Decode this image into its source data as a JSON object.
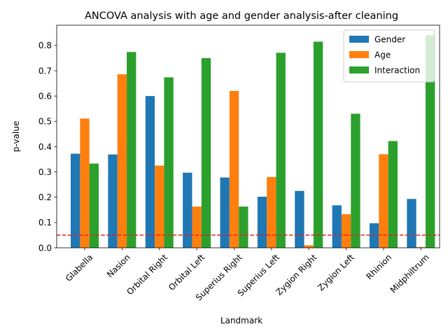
{
  "chart_data": {
    "type": "bar",
    "title": "ANCOVA analysis with age and gender analysis-after cleaning",
    "xlabel": "Landmark",
    "ylabel": "p-value",
    "ylim": [
      0,
      0.88
    ],
    "yticks": [
      "0.0",
      "0.1",
      "0.2",
      "0.3",
      "0.4",
      "0.5",
      "0.6",
      "0.7",
      "0.8"
    ],
    "categories": [
      "Glabella",
      "Nasion",
      "Orbital Right",
      "Orbital Left",
      "Superius Right",
      "Superius Left",
      "Zygion Right",
      "Zygion Left",
      "Rhinion",
      "Midphiltrum"
    ],
    "series": [
      {
        "name": "Gender",
        "color": "#1f77b4",
        "values": [
          0.372,
          0.369,
          0.6,
          0.297,
          0.278,
          0.202,
          0.225,
          0.168,
          0.097,
          0.193
        ]
      },
      {
        "name": "Age",
        "color": "#ff7f0e",
        "values": [
          0.511,
          0.686,
          0.325,
          0.163,
          0.62,
          0.28,
          0.01,
          0.133,
          0.37,
          0.003
        ]
      },
      {
        "name": "Interaction",
        "color": "#2ca02c",
        "values": [
          0.333,
          0.774,
          0.674,
          0.75,
          0.163,
          0.771,
          0.815,
          0.53,
          0.422,
          0.84
        ]
      }
    ],
    "threshold": {
      "value": 0.05,
      "color": "#d62728",
      "style": "dashed"
    },
    "legend_position": "top-right"
  }
}
